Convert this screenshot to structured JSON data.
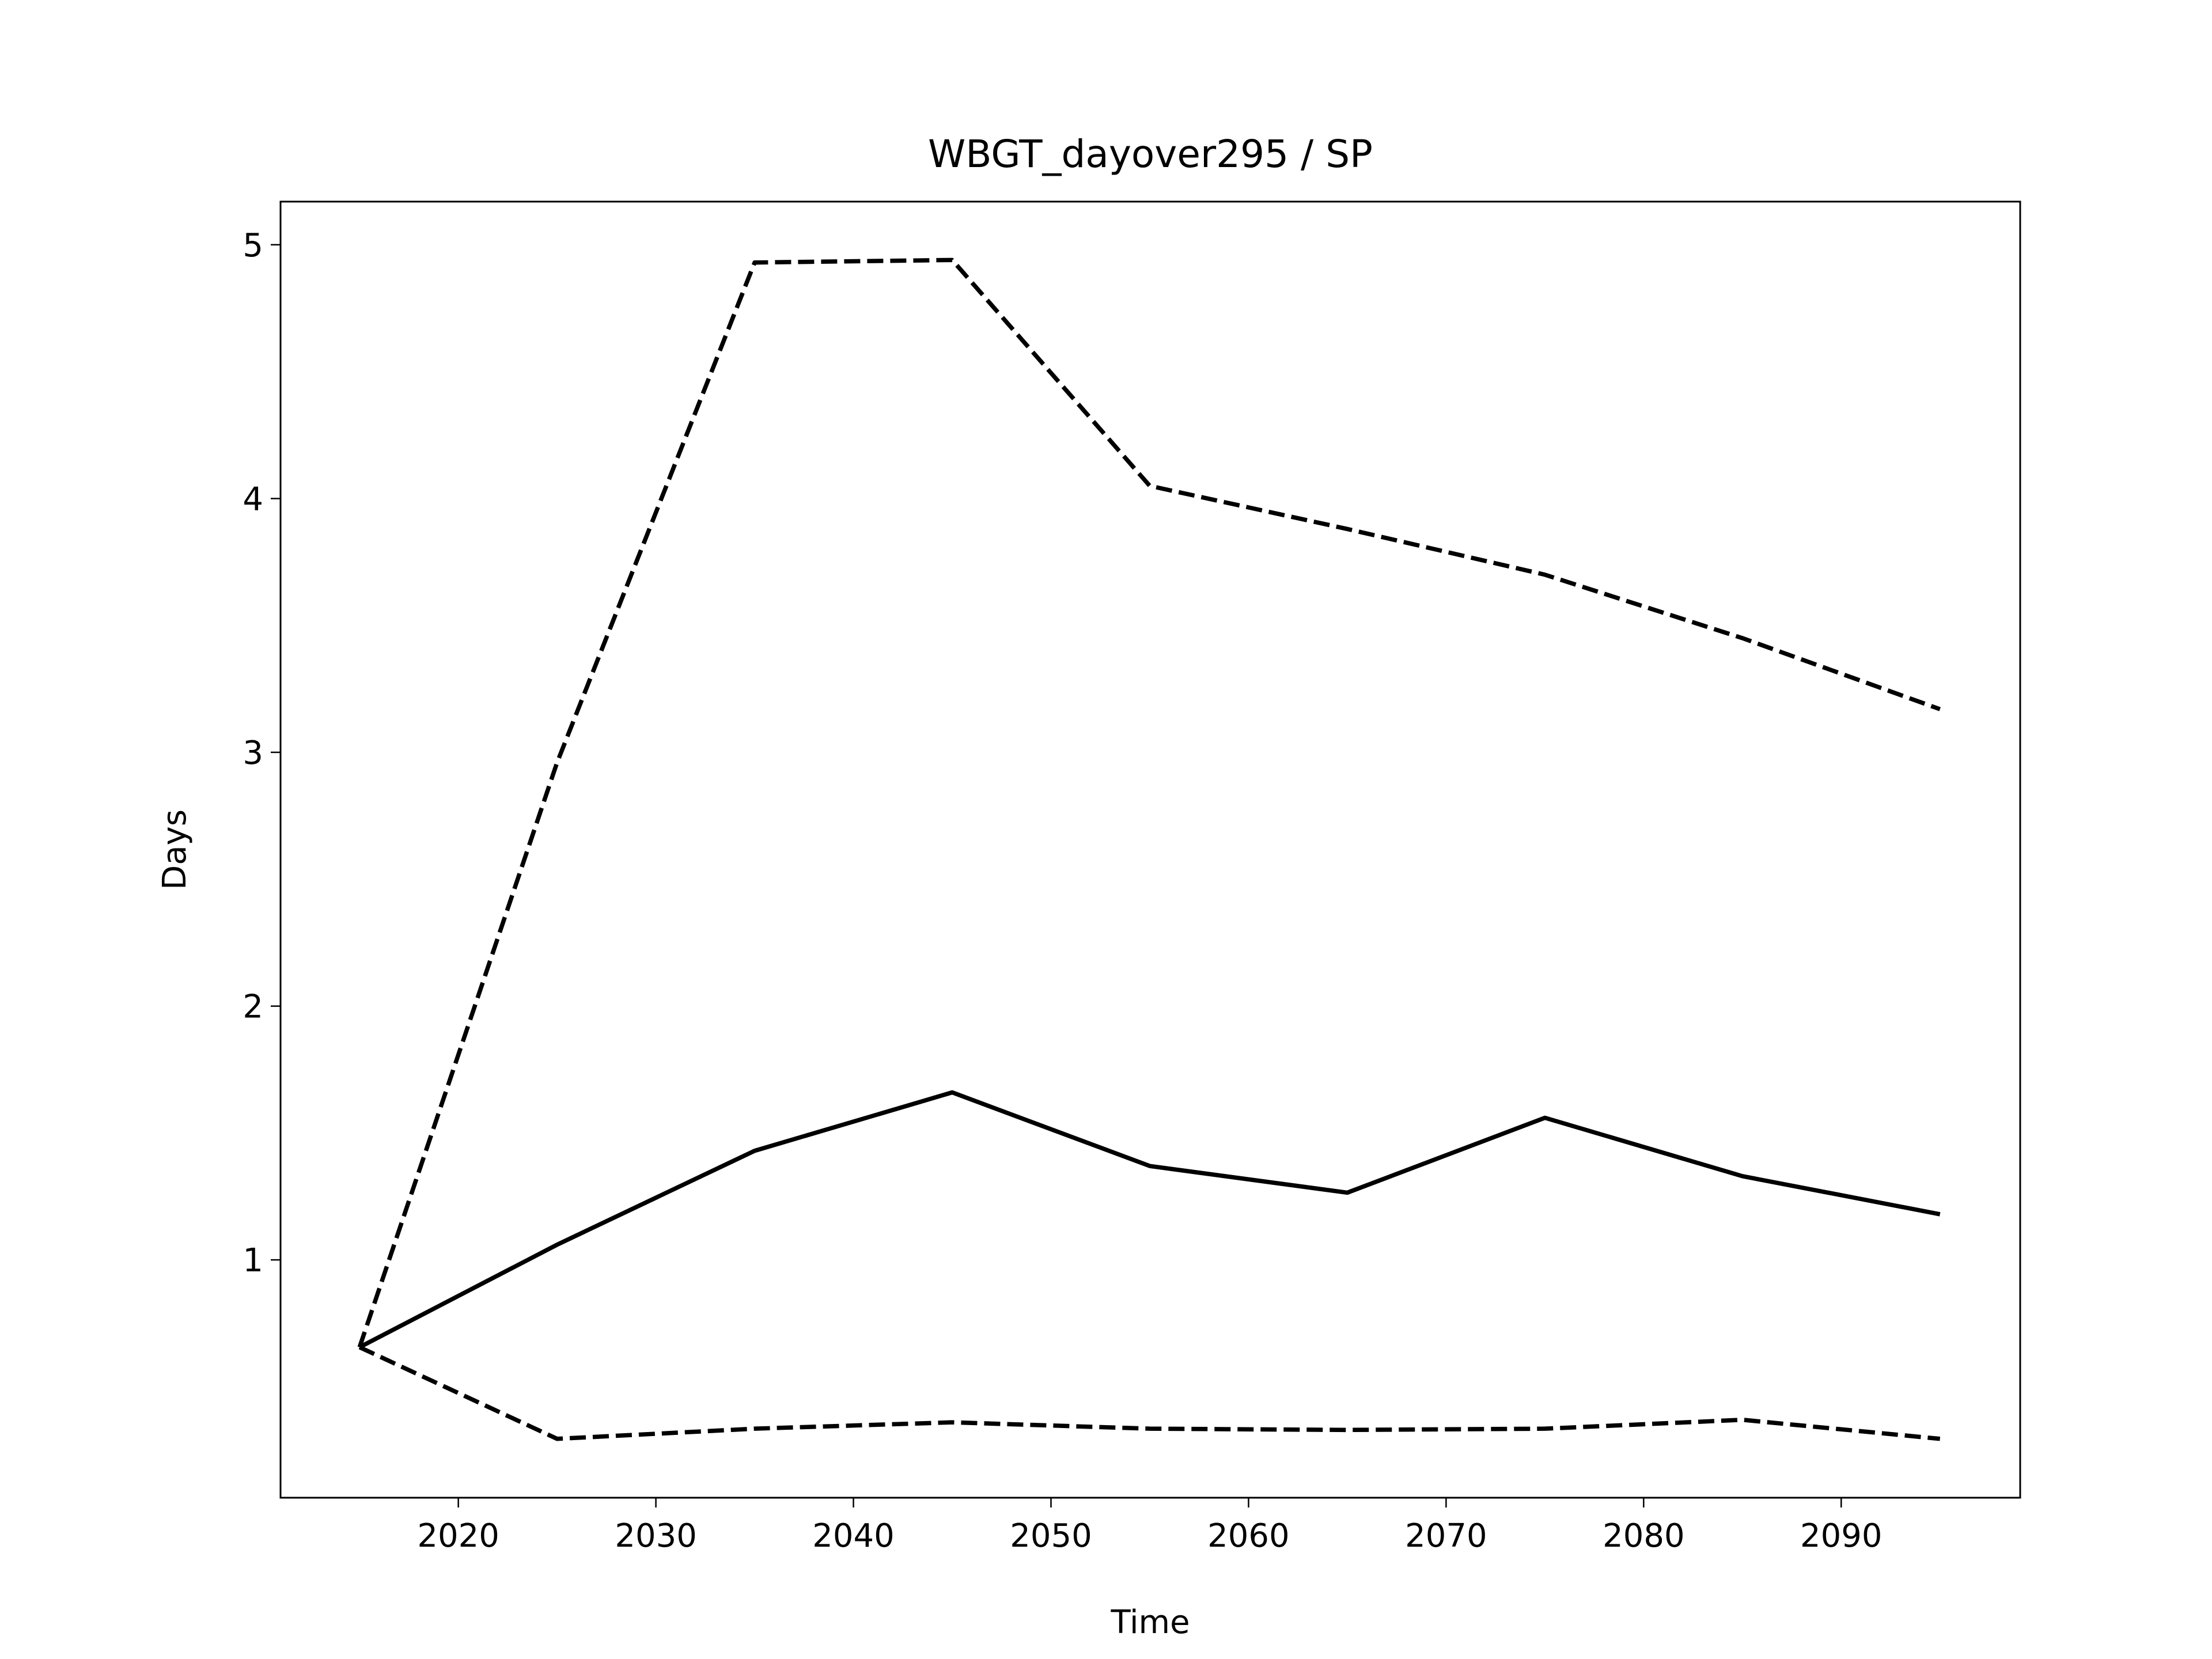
{
  "chart_data": {
    "type": "line",
    "title": "WBGT_dayover295 / SP",
    "xlabel": "Time",
    "ylabel": "Days",
    "x": [
      2015,
      2025,
      2035,
      2045,
      2055,
      2065,
      2075,
      2085,
      2095
    ],
    "series": [
      {
        "color": "#000000",
        "linestyle": "solid",
        "values": [
          0.656,
          1.06,
          1.43,
          1.66,
          1.37,
          1.265,
          1.56,
          1.33,
          1.18
        ]
      },
      {
        "color": "#000000",
        "linestyle": "dashed",
        "values": [
          0.656,
          2.96,
          4.93,
          4.94,
          4.05,
          3.88,
          3.7,
          3.45,
          3.17
        ]
      },
      {
        "color": "#000000",
        "linestyle": "dashed",
        "values": [
          0.656,
          0.295,
          0.335,
          0.36,
          0.335,
          0.33,
          0.335,
          0.37,
          0.295
        ]
      }
    ],
    "xlim": [
      2011.0,
      2099.06
    ],
    "ylim": [
      0.063,
      5.17
    ],
    "xticks": [
      2020,
      2030,
      2040,
      2050,
      2060,
      2070,
      2080,
      2090
    ],
    "yticks": [
      1,
      2,
      3,
      4,
      5
    ],
    "grid": false
  }
}
